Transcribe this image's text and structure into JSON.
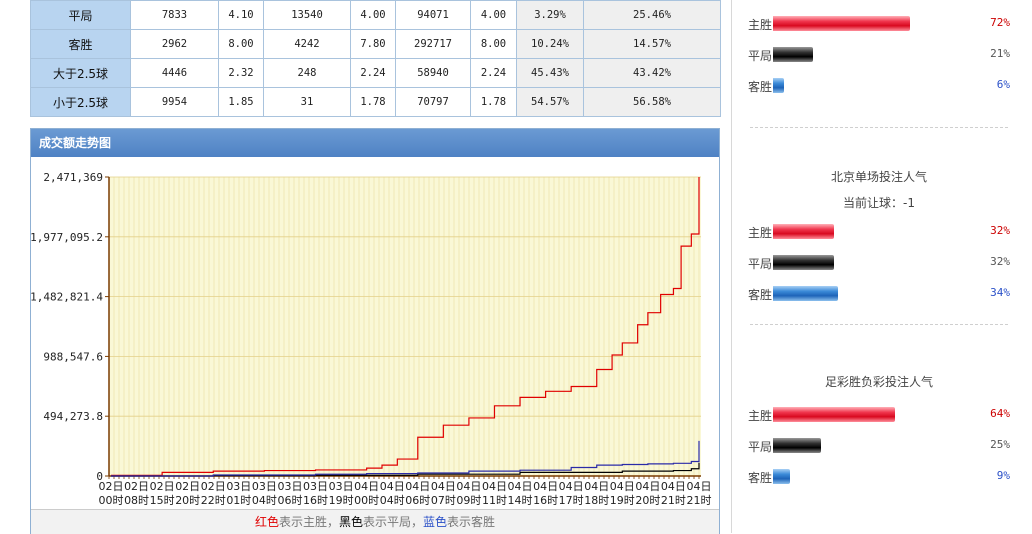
{
  "stats_table": {
    "rows": [
      {
        "label": "平局",
        "cells": [
          "7833",
          "4.10",
          "13540",
          "4.00",
          "94071",
          "4.00",
          "3.29%",
          "25.46%"
        ]
      },
      {
        "label": "客胜",
        "cells": [
          "2962",
          "8.00",
          "4242",
          "7.80",
          "292717",
          "8.00",
          "10.24%",
          "14.57%"
        ]
      },
      {
        "label": "大于2.5球",
        "cells": [
          "4446",
          "2.32",
          "248",
          "2.24",
          "58940",
          "2.24",
          "45.43%",
          "43.42%"
        ]
      },
      {
        "label": "小于2.5球",
        "cells": [
          "9954",
          "1.85",
          "31",
          "1.78",
          "70797",
          "1.78",
          "54.57%",
          "56.58%"
        ]
      }
    ]
  },
  "chart_panel": {
    "title": "成交额走势图",
    "legend": {
      "red_word": "红色",
      "red_desc": "表示主胜，",
      "black_word": "黑色",
      "black_desc": "表示平局，",
      "blue_word": "蓝色",
      "blue_desc": "表示客胜"
    }
  },
  "chart_data": {
    "type": "line",
    "y_tick_labels": [
      "0",
      "494,273.8",
      "988,547.6",
      "1,482,821.4",
      "1,977,095.2",
      "2,471,369"
    ],
    "ylim": [
      0,
      2471369
    ],
    "x_tick_labels": [
      [
        "02日",
        "00时"
      ],
      [
        "02日",
        "08时"
      ],
      [
        "02日",
        "15时"
      ],
      [
        "02日",
        "20时"
      ],
      [
        "02日",
        "22时"
      ],
      [
        "03日",
        "01时"
      ],
      [
        "03日",
        "04时"
      ],
      [
        "03日",
        "06时"
      ],
      [
        "03日",
        "16时"
      ],
      [
        "03日",
        "19时"
      ],
      [
        "04日",
        "00时"
      ],
      [
        "04日",
        "04时"
      ],
      [
        "04日",
        "06时"
      ],
      [
        "04日",
        "07时"
      ],
      [
        "04日",
        "09时"
      ],
      [
        "04日",
        "11时"
      ],
      [
        "04日",
        "14时"
      ],
      [
        "04日",
        "16时"
      ],
      [
        "04日",
        "17时"
      ],
      [
        "04日",
        "18时"
      ],
      [
        "04日",
        "19时"
      ],
      [
        "04日",
        "20时"
      ],
      [
        "04日",
        "21时"
      ],
      [
        "04日",
        "21时"
      ]
    ],
    "grid": true,
    "background": "#faf8d6",
    "series": [
      {
        "color": "#e00000",
        "x": [
          0,
          2,
          4,
          6,
          8,
          10,
          10.6,
          11.2,
          12,
          13,
          14,
          15,
          16,
          17,
          18,
          19,
          19.6,
          20,
          20.6,
          21,
          21.5,
          22,
          22.3,
          22.7,
          23
        ],
        "values": [
          5000,
          30000,
          40000,
          45000,
          50000,
          65000,
          90000,
          140000,
          320000,
          420000,
          480000,
          580000,
          650000,
          700000,
          740000,
          880000,
          1000000,
          1100000,
          1250000,
          1350000,
          1500000,
          1550000,
          1900000,
          2000000,
          2471369
        ]
      },
      {
        "color": "#000000",
        "x": [
          0,
          4,
          8,
          12,
          16,
          20,
          22,
          22.7,
          23
        ],
        "values": [
          0,
          3000,
          6000,
          15000,
          30000,
          40000,
          45000,
          60000,
          110000
        ]
      },
      {
        "color": "#2a2aa8",
        "x": [
          0,
          4,
          8,
          10,
          12,
          14,
          16,
          18,
          19,
          20,
          21,
          22,
          22.7,
          23
        ],
        "values": [
          0,
          8000,
          15000,
          20000,
          25000,
          40000,
          48000,
          70000,
          90000,
          95000,
          100000,
          105000,
          120000,
          290000
        ]
      }
    ]
  },
  "side_sections": [
    {
      "title": "",
      "subtitle": "",
      "rows": [
        {
          "label": "主胜",
          "pct": "72%",
          "value": 72,
          "color": "red"
        },
        {
          "label": "平局",
          "pct": "21%",
          "value": 21,
          "color": "black"
        },
        {
          "label": "客胜",
          "pct": "6%",
          "value": 6,
          "color": "blue"
        }
      ]
    },
    {
      "title": "北京单场投注人气",
      "subtitle": "当前让球：-1",
      "rows": [
        {
          "label": "主胜",
          "pct": "32%",
          "value": 32,
          "color": "red"
        },
        {
          "label": "平局",
          "pct": "32%",
          "value": 32,
          "color": "black"
        },
        {
          "label": "客胜",
          "pct": "34%",
          "value": 34,
          "color": "blue"
        }
      ]
    },
    {
      "title": "足彩胜负彩投注人气",
      "subtitle": "",
      "rows": [
        {
          "label": "主胜",
          "pct": "64%",
          "value": 64,
          "color": "red"
        },
        {
          "label": "平局",
          "pct": "25%",
          "value": 25,
          "color": "black"
        },
        {
          "label": "客胜",
          "pct": "9%",
          "value": 9,
          "color": "blue"
        }
      ]
    }
  ]
}
